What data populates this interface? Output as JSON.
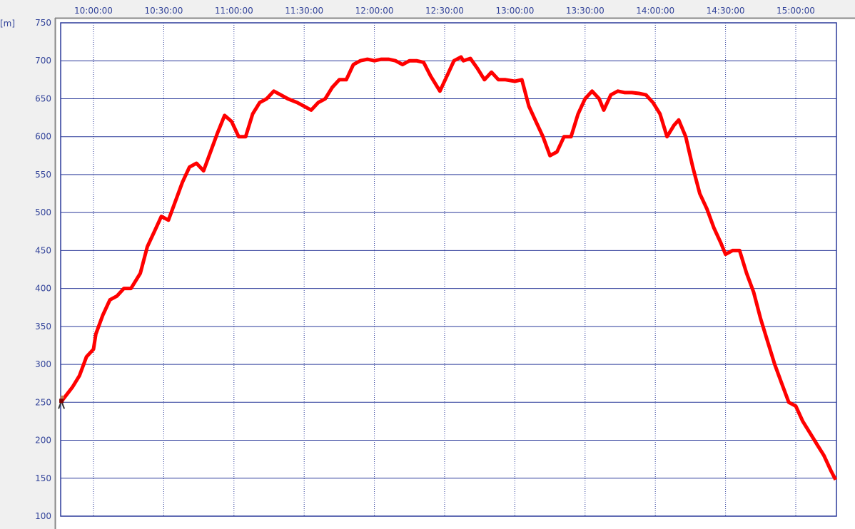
{
  "chart_data": {
    "type": "line",
    "title": "",
    "xlabel": "",
    "ylabel": "[m]",
    "ylim": [
      100,
      750
    ],
    "xlim": [
      "09:46",
      "15:17"
    ],
    "y_ticks": [
      "100",
      "150",
      "200",
      "250",
      "300",
      "350",
      "400",
      "450",
      "500",
      "550",
      "600",
      "650",
      "700",
      "750"
    ],
    "x_ticks": [
      "10:00:00",
      "10:30:00",
      "11:00:00",
      "11:30:00",
      "12:00:00",
      "12:30:00",
      "13:00:00",
      "13:30:00",
      "14:00:00",
      "14:30:00",
      "15:00:00"
    ],
    "grid": true,
    "line_color": "#ff0000",
    "grid_color": "#2b3a9a",
    "series": [
      {
        "x": [
          "09:46",
          "09:51",
          "09:54",
          "09:57",
          "10:00",
          "10:01",
          "10:04",
          "10:07",
          "10:10",
          "10:13",
          "10:16",
          "10:20",
          "10:23",
          "10:26",
          "10:29",
          "10:32",
          "10:35",
          "10:38",
          "10:41",
          "10:44",
          "10:47",
          "10:50",
          "10:53",
          "10:56",
          "10:59",
          "11:02",
          "11:05",
          "11:08",
          "11:11",
          "11:14",
          "11:17",
          "11:20",
          "11:23",
          "11:27",
          "11:30",
          "11:33",
          "11:36",
          "11:39",
          "11:42",
          "11:45",
          "11:48",
          "11:51",
          "11:54",
          "11:57",
          "12:00",
          "12:03",
          "12:06",
          "12:09",
          "12:12",
          "12:15",
          "12:18",
          "12:21",
          "12:24",
          "12:28",
          "12:31",
          "12:34",
          "12:37",
          "12:38",
          "12:41",
          "12:44",
          "12:47",
          "12:50",
          "12:53",
          "12:56",
          "13:00",
          "13:03",
          "13:06",
          "13:09",
          "13:12",
          "13:15",
          "13:18",
          "13:21",
          "13:24",
          "13:27",
          "13:30",
          "13:33",
          "13:36",
          "13:38",
          "13:41",
          "13:44",
          "13:47",
          "13:50",
          "13:53",
          "13:56",
          "13:59",
          "14:02",
          "14:05",
          "14:08",
          "14:10",
          "14:13",
          "14:16",
          "14:19",
          "14:22",
          "14:25",
          "14:28",
          "14:30",
          "14:33",
          "14:36",
          "14:39",
          "14:42",
          "14:45",
          "14:48",
          "14:51",
          "14:54",
          "14:57",
          "15:00",
          "15:03",
          "15:06",
          "15:09",
          "15:12",
          "15:15",
          "15:17"
        ],
        "y": [
          250,
          270,
          285,
          310,
          320,
          340,
          365,
          385,
          390,
          400,
          400,
          420,
          455,
          475,
          495,
          490,
          515,
          540,
          560,
          565,
          555,
          580,
          605,
          628,
          620,
          600,
          600,
          630,
          645,
          650,
          660,
          655,
          650,
          645,
          640,
          635,
          645,
          650,
          665,
          675,
          675,
          695,
          700,
          702,
          700,
          702,
          702,
          700,
          695,
          700,
          700,
          698,
          680,
          660,
          680,
          700,
          705,
          700,
          703,
          690,
          675,
          685,
          675,
          675,
          673,
          675,
          640,
          620,
          600,
          575,
          580,
          600,
          600,
          630,
          650,
          660,
          650,
          635,
          655,
          660,
          658,
          658,
          657,
          655,
          645,
          630,
          600,
          615,
          622,
          600,
          560,
          525,
          505,
          480,
          460,
          445,
          450,
          450,
          420,
          395,
          360,
          330,
          300,
          275,
          250,
          245,
          225,
          210,
          195,
          180,
          160,
          148
        ]
      }
    ]
  }
}
